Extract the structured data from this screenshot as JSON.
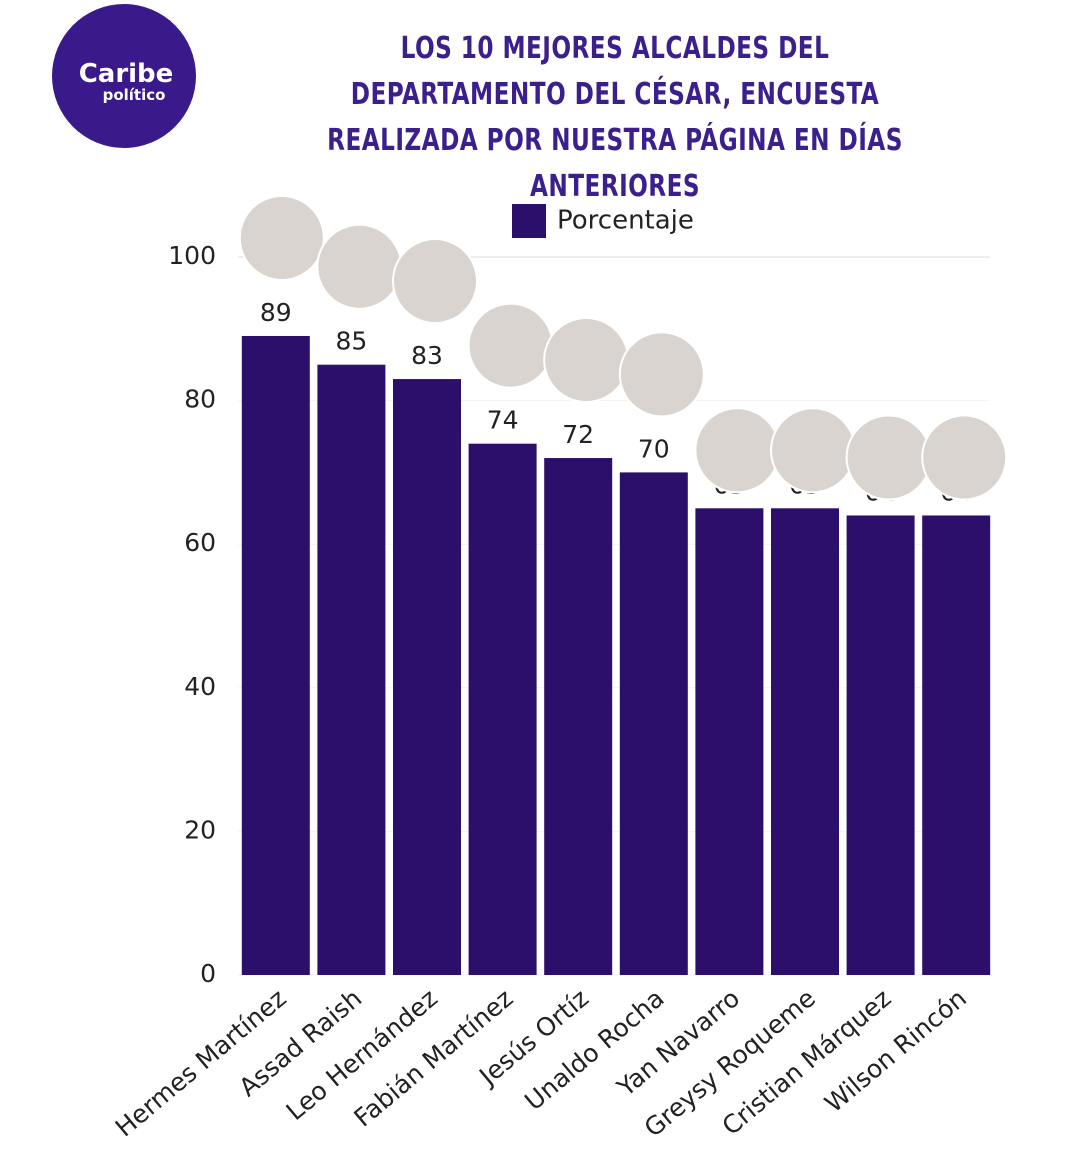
{
  "logo": {
    "line1": "Caribe",
    "line2": "político"
  },
  "chart_data": {
    "type": "bar",
    "title": "LOS 10 MEJORES ALCALDES DEL DEPARTAMENTO DEL CÉSAR, ENCUESTA REALIZADA POR NUESTRA PÁGINA EN DÍAS ANTERIORES",
    "categories": [
      "Hermes Martínez",
      "Assad Raish",
      "Leo Hernández",
      "Fabián Martínez",
      "Jesús Ortíz",
      "Unaldo Rocha",
      "Yan Navarro",
      "Greysy Roqueme",
      "Cristian Márquez",
      "Wilson Rincón"
    ],
    "series": [
      {
        "name": "Porcentaje",
        "color": "#2c0f6b",
        "values": [
          89,
          85,
          83,
          74,
          72,
          70,
          65,
          65,
          64,
          64
        ]
      }
    ],
    "ylim": [
      0,
      100
    ],
    "yticks": [
      0,
      20,
      40,
      60,
      80,
      100
    ],
    "grid": true,
    "legend": "top"
  }
}
